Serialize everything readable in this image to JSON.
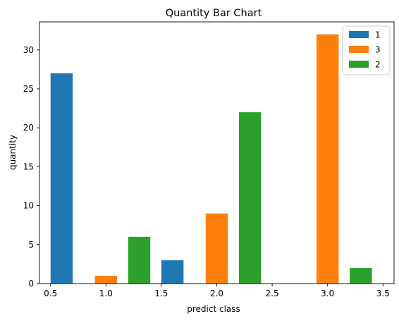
{
  "chart_data": {
    "type": "bar",
    "title": "Quantity Bar Chart",
    "xlabel": "predict class",
    "ylabel": "quantity",
    "xlim": [
      0.4,
      3.6
    ],
    "ylim": [
      0,
      33.6
    ],
    "xticks": [
      0.5,
      1.0,
      1.5,
      2.0,
      2.5,
      3.0,
      3.5
    ],
    "xtick_labels": [
      "0.5",
      "1.0",
      "1.5",
      "2.0",
      "2.5",
      "3.0",
      "3.5"
    ],
    "yticks": [
      0,
      5,
      10,
      15,
      20,
      25,
      30
    ],
    "ytick_labels": [
      "0",
      "5",
      "10",
      "15",
      "20",
      "25",
      "30"
    ],
    "bar_width": 0.2,
    "legend_position": "top-right",
    "grid": false,
    "series": [
      {
        "name": "1",
        "color": "#1f77b4",
        "x": [
          0.6,
          1.6,
          2.6
        ],
        "values": [
          27,
          3,
          0
        ]
      },
      {
        "name": "3",
        "color": "#ff7f0e",
        "x": [
          1.0,
          2.0,
          3.0
        ],
        "values": [
          1,
          9,
          32
        ]
      },
      {
        "name": "2",
        "color": "#2ca02c",
        "x": [
          1.3,
          2.3,
          3.3
        ],
        "values": [
          6,
          22,
          2
        ]
      }
    ]
  }
}
